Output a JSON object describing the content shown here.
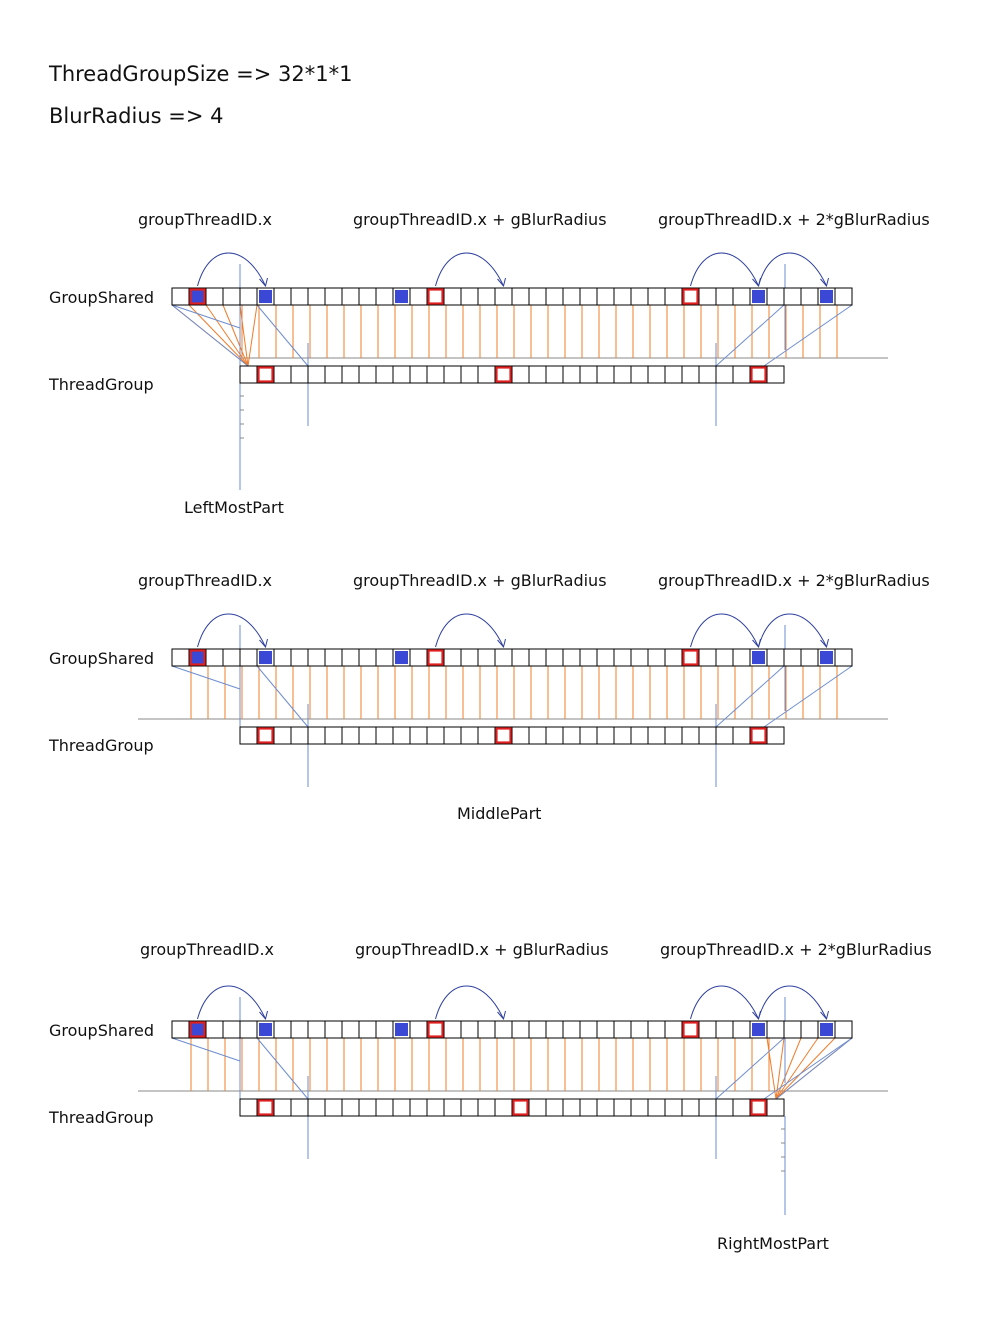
{
  "header": {
    "line1": "ThreadGroupSize => 32*1*1",
    "line2": "BlurRadius => 4"
  },
  "panels": [
    {
      "id": "left",
      "arc_labels": [
        "groupThreadID.x",
        "groupThreadID.x + gBlurRadius",
        "groupThreadID.x + 2*gBlurRadius"
      ],
      "row_labels": [
        "GroupShared",
        "ThreadGroup"
      ],
      "part_label": "LeftMostPart",
      "fan": "left"
    },
    {
      "id": "middle",
      "arc_labels": [
        "groupThreadID.x",
        "groupThreadID.x + gBlurRadius",
        "groupThreadID.x + 2*gBlurRadius"
      ],
      "row_labels": [
        "GroupShared",
        "ThreadGroup"
      ],
      "part_label": "MiddlePart",
      "fan": "none"
    },
    {
      "id": "right",
      "arc_labels": [
        "groupThreadID.x",
        "groupThreadID.x + gBlurRadius",
        "groupThreadID.x + 2*gBlurRadius"
      ],
      "row_labels": [
        "GroupShared",
        "ThreadGroup"
      ],
      "part_label": "RightMostPart",
      "fan": "right"
    }
  ],
  "colors": {
    "cell_border": "#000000",
    "blue_fill": "#3b48d6",
    "red_outline": "#e02020",
    "orange_line": "#f07c2a",
    "blue_line": "#6e8ed0",
    "arc": "#2e3f9e",
    "axis": "#8a8a8a"
  }
}
